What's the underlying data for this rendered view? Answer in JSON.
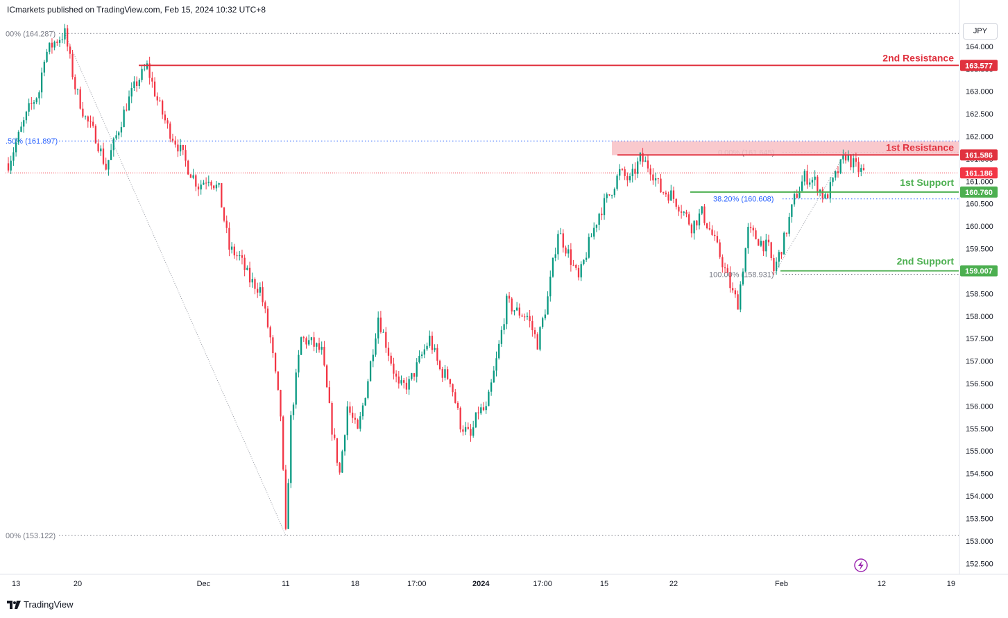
{
  "header": {
    "publisher": "ICmarkets published on TradingView.com, Feb 15, 2024 10:32 UTC+8"
  },
  "currency": "JPY",
  "footer": {
    "brand": "TradingView",
    "icon": "tradingview-logo-icon"
  },
  "colors": {
    "up": "#089981",
    "down": "#f23645",
    "resistance": "#e0323f",
    "support": "#4caf50",
    "zone": "#f8bfc4",
    "fib": "#2962ff",
    "fib_text": "#787b86"
  },
  "chart_data": {
    "type": "candlestick",
    "symbol_currency": "JPY",
    "ylim": [
      152.35,
      164.6
    ],
    "y_ticks": [
      "164.000",
      "163.500",
      "163.000",
      "162.500",
      "162.000",
      "161.500",
      "161.000",
      "160.500",
      "160.000",
      "159.500",
      "159.000",
      "158.500",
      "158.000",
      "157.500",
      "157.000",
      "156.500",
      "156.000",
      "155.500",
      "155.000",
      "154.500",
      "154.000",
      "153.500",
      "153.000",
      "152.500"
    ],
    "x_ticks": [
      {
        "label": "13",
        "idx": 3
      },
      {
        "label": "20",
        "idx": 27
      },
      {
        "label": "Dec",
        "idx": 76
      },
      {
        "label": "11",
        "idx": 108
      },
      {
        "label": "18",
        "idx": 135
      },
      {
        "label": "17:00",
        "idx": 159
      },
      {
        "label": "2024",
        "idx": 184
      },
      {
        "label": "17:00",
        "idx": 208
      },
      {
        "label": "15",
        "idx": 232
      },
      {
        "label": "22",
        "idx": 259
      },
      {
        "label": "Feb",
        "idx": 301
      },
      {
        "label": "12",
        "idx": 340
      },
      {
        "label": "19",
        "idx": 367
      }
    ],
    "resistance_2": {
      "label": "2nd Resistance",
      "price": "163.577"
    },
    "resistance_1": {
      "label": "1st Resistance",
      "price": "161.586",
      "zone_top": 161.89,
      "zone_bottom": 161.58
    },
    "support_1": {
      "label": "1st Support",
      "price": "160.760"
    },
    "support_2": {
      "label": "2nd Support",
      "price": "159.007"
    },
    "current_price": "161.186",
    "fib_left": [
      {
        "label": "00% (164.287)",
        "value": 164.287
      },
      {
        "label": ".50% (161.897)",
        "value": 161.897
      },
      {
        "label": "00% (153.122)",
        "value": 153.122
      }
    ],
    "fib_right": [
      {
        "label": "0.00% (161.645)",
        "value": 161.645
      },
      {
        "label": "38.20% (160.608)",
        "value": 160.608
      },
      {
        "label": "100.00% (158.931)",
        "value": 158.931
      }
    ],
    "anchors": [
      [
        0,
        161.4
      ],
      [
        4,
        162.0
      ],
      [
        8,
        162.6
      ],
      [
        12,
        163.0
      ],
      [
        14,
        163.8
      ],
      [
        18,
        164.1
      ],
      [
        22,
        164.287
      ],
      [
        26,
        163.1
      ],
      [
        30,
        162.4
      ],
      [
        34,
        162.0
      ],
      [
        38,
        161.3
      ],
      [
        42,
        162.0
      ],
      [
        46,
        162.7
      ],
      [
        50,
        163.2
      ],
      [
        54,
        163.55
      ],
      [
        58,
        162.8
      ],
      [
        62,
        162.2
      ],
      [
        66,
        161.8
      ],
      [
        70,
        161.3
      ],
      [
        74,
        160.9
      ],
      [
        78,
        161.1
      ],
      [
        82,
        160.8
      ],
      [
        86,
        159.5
      ],
      [
        90,
        159.3
      ],
      [
        94,
        158.8
      ],
      [
        98,
        158.6
      ],
      [
        102,
        157.5
      ],
      [
        106,
        155.8
      ],
      [
        108,
        153.122
      ],
      [
        110,
        155.7
      ],
      [
        114,
        157.5
      ],
      [
        118,
        157.4
      ],
      [
        122,
        157.2
      ],
      [
        126,
        155.5
      ],
      [
        129,
        154.5
      ],
      [
        132,
        156.0
      ],
      [
        136,
        155.4
      ],
      [
        140,
        156.6
      ],
      [
        144,
        158.0
      ],
      [
        148,
        157.2
      ],
      [
        152,
        156.4
      ],
      [
        156,
        156.5
      ],
      [
        160,
        157.0
      ],
      [
        164,
        157.5
      ],
      [
        168,
        156.8
      ],
      [
        172,
        156.6
      ],
      [
        176,
        155.6
      ],
      [
        180,
        155.3
      ],
      [
        183,
        155.9
      ],
      [
        186,
        155.9
      ],
      [
        190,
        157.0
      ],
      [
        194,
        158.3
      ],
      [
        198,
        158.1
      ],
      [
        202,
        158.0
      ],
      [
        206,
        157.4
      ],
      [
        210,
        158.4
      ],
      [
        214,
        159.9
      ],
      [
        218,
        159.4
      ],
      [
        222,
        158.8
      ],
      [
        226,
        159.6
      ],
      [
        230,
        160.3
      ],
      [
        234,
        160.7
      ],
      [
        238,
        161.2
      ],
      [
        242,
        161.0
      ],
      [
        246,
        161.5
      ],
      [
        250,
        161.3
      ],
      [
        254,
        160.8
      ],
      [
        258,
        160.7
      ],
      [
        262,
        160.4
      ],
      [
        266,
        160.0
      ],
      [
        270,
        160.3
      ],
      [
        274,
        159.8
      ],
      [
        278,
        159.2
      ],
      [
        282,
        158.5
      ],
      [
        284,
        158.3
      ],
      [
        288,
        159.9
      ],
      [
        292,
        159.7
      ],
      [
        296,
        159.5
      ],
      [
        298,
        159.007
      ],
      [
        302,
        159.7
      ],
      [
        306,
        160.6
      ],
      [
        310,
        161.1
      ],
      [
        314,
        161.0
      ],
      [
        318,
        160.6
      ],
      [
        322,
        161.1
      ],
      [
        326,
        161.586
      ],
      [
        330,
        161.3
      ],
      [
        333,
        161.186
      ]
    ],
    "n_candles": 334
  }
}
